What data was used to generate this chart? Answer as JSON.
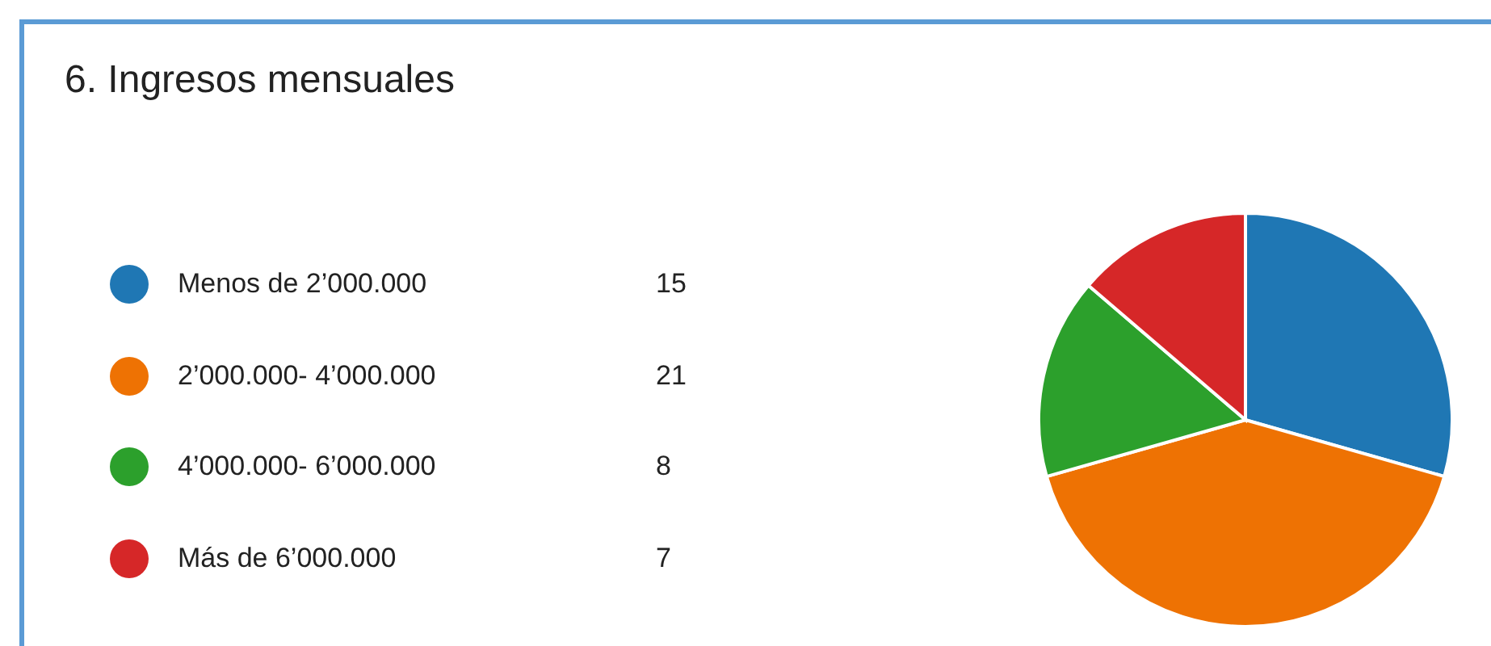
{
  "chart_data": {
    "type": "pie",
    "title": "6.  Ingresos mensuales",
    "categories": [
      "Menos de 2’000.000",
      "2’000.000- 4’000.000",
      "4’000.000- 6’000.000",
      "Más de 6’000.000"
    ],
    "values": [
      15,
      21,
      8,
      7
    ],
    "colors": [
      "#1f77b4",
      "#ee7203",
      "#2ca02c",
      "#d62728"
    ],
    "data_labels": true,
    "legend": "left"
  }
}
